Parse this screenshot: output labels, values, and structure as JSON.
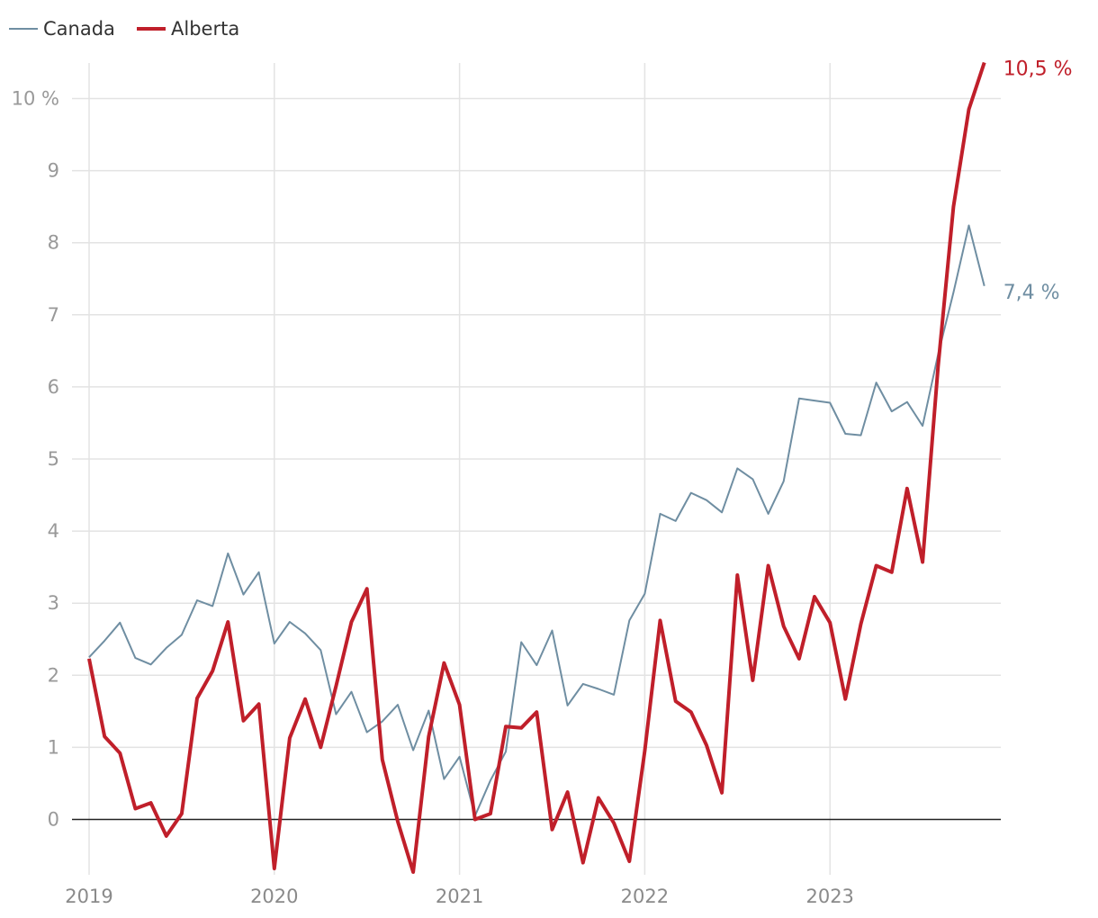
{
  "legend": {
    "canada": "Canada",
    "alberta": "Alberta"
  },
  "colors": {
    "canada": "#6f8ea2",
    "alberta": "#c01f2a"
  },
  "chart_data": {
    "type": "line",
    "x_start": "2019-01",
    "x_tick_labels": [
      "2019",
      "2020",
      "2021",
      "2022",
      "2023"
    ],
    "y_tick_values": [
      0,
      1,
      2,
      3,
      4,
      5,
      6,
      7,
      8,
      9,
      10
    ],
    "y_tick_labels": [
      "0",
      "1",
      "2",
      "3",
      "4",
      "5",
      "6",
      "7",
      "8",
      "9",
      "10 %"
    ],
    "ylim": [
      -0.75,
      10.5
    ],
    "grid": true,
    "legend_position": "top-left",
    "series": [
      {
        "name": "Canada",
        "color": "#6f8ea2",
        "end_label": "7,4 %",
        "values": [
          2.25,
          2.48,
          2.73,
          2.24,
          2.15,
          2.38,
          2.56,
          3.04,
          2.96,
          3.69,
          3.12,
          3.43,
          2.44,
          2.74,
          2.58,
          2.35,
          1.46,
          1.77,
          1.21,
          1.36,
          1.59,
          0.96,
          1.51,
          0.56,
          0.87,
          0.05,
          0.54,
          0.94,
          2.46,
          2.14,
          2.62,
          1.58,
          1.88,
          1.81,
          1.73,
          2.76,
          3.13,
          4.24,
          4.14,
          4.53,
          4.43,
          4.26,
          4.87,
          4.72,
          4.24,
          4.69,
          5.84,
          5.81,
          5.78,
          5.35,
          5.33,
          6.06,
          5.66,
          5.79,
          5.46,
          6.45,
          7.31,
          8.24,
          7.4
        ]
      },
      {
        "name": "Alberta",
        "color": "#c01f2a",
        "end_label": "10,5 %",
        "values": [
          2.23,
          1.15,
          0.92,
          0.15,
          0.23,
          -0.23,
          0.08,
          1.68,
          2.06,
          2.74,
          1.37,
          1.6,
          -0.68,
          1.13,
          1.67,
          1.0,
          1.85,
          2.74,
          3.2,
          0.83,
          -0.03,
          -0.73,
          1.15,
          2.17,
          1.59,
          0.0,
          0.08,
          1.29,
          1.27,
          1.49,
          -0.14,
          0.38,
          -0.6,
          0.3,
          -0.05,
          -0.58,
          0.95,
          2.76,
          1.64,
          1.49,
          1.03,
          0.37,
          3.39,
          1.93,
          3.52,
          2.68,
          2.23,
          3.09,
          2.73,
          1.67,
          2.71,
          3.52,
          3.43,
          4.59,
          3.57,
          6.28,
          8.5,
          9.85,
          10.5
        ]
      }
    ]
  }
}
